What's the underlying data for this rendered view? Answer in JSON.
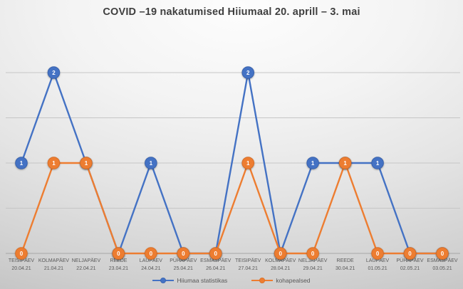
{
  "title": "COVID –19 nakatumised Hiiumaal 20. aprill – 3. mai",
  "chart_data": {
    "type": "line",
    "categories": [
      {
        "weekday": "TEISIPÄEV",
        "date": "20.04.21"
      },
      {
        "weekday": "KOLMAPÄEV",
        "date": "21.04.21"
      },
      {
        "weekday": "NELJAPÄEV",
        "date": "22.04.21"
      },
      {
        "weekday": "REEDE",
        "date": "23.04.21"
      },
      {
        "weekday": "LAUPÄEV",
        "date": "24.04.21"
      },
      {
        "weekday": "PÜHAPÄEV",
        "date": "25.04.21"
      },
      {
        "weekday": "ESMASPÄEV",
        "date": "26.04.21"
      },
      {
        "weekday": "TEISIPÄEV",
        "date": "27.04.21"
      },
      {
        "weekday": "KOLMAPÄEV",
        "date": "28.04.21"
      },
      {
        "weekday": "NELJAPÄEV",
        "date": "29.04.21"
      },
      {
        "weekday": "REEDE",
        "date": "30.04.21"
      },
      {
        "weekday": "LAUPÄEV",
        "date": "01.05.21"
      },
      {
        "weekday": "PÜHAPÄEV",
        "date": "02.05.21"
      },
      {
        "weekday": "ESMASPÄEV",
        "date": "03.05.21"
      }
    ],
    "series": [
      {
        "name": "Hiiumaa statistikas",
        "color": "#4472C4",
        "stroke_dark": "#3a63ad",
        "values": [
          1,
          2,
          1,
          0,
          1,
          0,
          0,
          2,
          0,
          1,
          1,
          1,
          0,
          0
        ]
      },
      {
        "name": "kohapealsed",
        "color": "#ED7D31",
        "stroke_dark": "#d86f27",
        "values": [
          0,
          1,
          1,
          0,
          0,
          0,
          0,
          1,
          0,
          0,
          1,
          0,
          0,
          0
        ]
      }
    ],
    "title": "COVID –19 nakatumised Hiiumaal 20. aprill – 3. mai",
    "xlabel": "",
    "ylabel": "",
    "ylim": [
      0,
      2.5
    ],
    "gridline_values": [
      0.5,
      1,
      1.5,
      2
    ],
    "grid": true,
    "data_labels": true,
    "legend_position": "bottom"
  },
  "colors": {
    "gridline": "#c6c6c6",
    "axis_line": "#a6a6a6",
    "axis_text": "#595959",
    "title_text": "#3f3f3f",
    "label_text": "#ffffff"
  }
}
